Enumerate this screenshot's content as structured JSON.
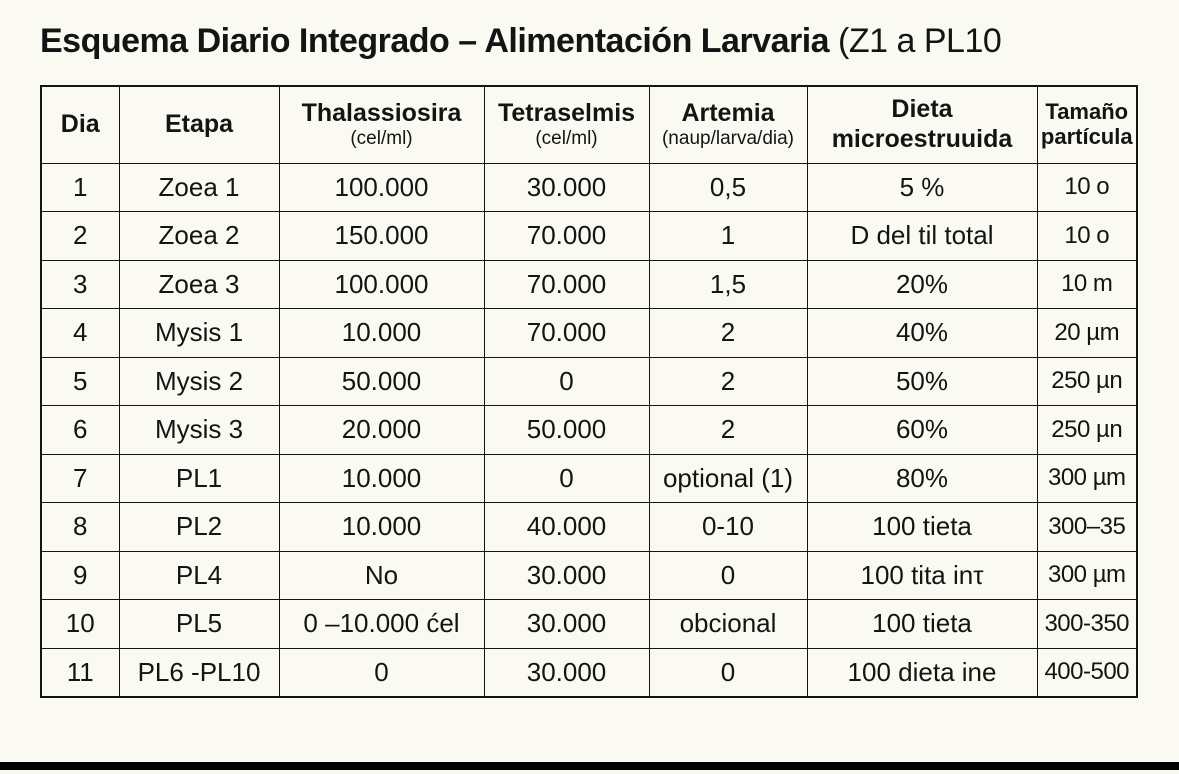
{
  "title": {
    "bold": "Esquema Diario Integrado – Alimentación Larvaria",
    "regular": " (Z1 a PL10"
  },
  "colors": {
    "background": "#FBFAF2",
    "border": "#141414",
    "text": "#141414",
    "bottom_bar": "#000000"
  },
  "table": {
    "headers": [
      {
        "line1": "Dia",
        "line2": "",
        "line2_type": "none"
      },
      {
        "line1": "Etapa",
        "line2": "",
        "line2_type": "none"
      },
      {
        "line1": "Thalassiosira",
        "line2": "(cel/ml)",
        "line2_type": "unit"
      },
      {
        "line1": "Tetraselmis",
        "line2": "(cel/ml)",
        "line2_type": "unit"
      },
      {
        "line1": "Artemia",
        "line2": "(naup/larva/dia)",
        "line2_type": "unit"
      },
      {
        "line1": "Dieta",
        "line2": "microestruuida",
        "line2_type": "bold"
      },
      {
        "line1": "Tamaño",
        "line2": "partícula",
        "line2_type": "bold"
      }
    ],
    "rows": [
      [
        "1",
        "Zoea 1",
        "100.000",
        "30.000",
        "0,5",
        "5 %",
        "10 o"
      ],
      [
        "2",
        "Zoea 2",
        "150.000",
        "70.000",
        "1",
        "D del til total",
        "10 o"
      ],
      [
        "3",
        "Zoea 3",
        "100.000",
        "70.000",
        "1,5",
        "20%",
        "10 m"
      ],
      [
        "4",
        "Mysis 1",
        "10.000",
        "70.000",
        "2",
        "40%",
        "20 µm"
      ],
      [
        "5",
        "Mysis 2",
        "50.000",
        "0",
        "2",
        "50%",
        "250 µn"
      ],
      [
        "6",
        "Mysis 3",
        "20.000",
        "50.000",
        "2",
        "60%",
        "250 µn"
      ],
      [
        "7",
        "PL1",
        "10.000",
        "0",
        "optional (1)",
        "80%",
        "300 µm"
      ],
      [
        "8",
        "PL2",
        "10.000",
        "40.000",
        "0-10",
        "100 tieta",
        "300–35"
      ],
      [
        "9",
        "PL4",
        "No",
        "30.000",
        "0",
        "100 tita inτ",
        "300 µm"
      ],
      [
        "10",
        "PL5",
        "0 –10.000 ćel",
        "30.000",
        "obcional",
        "100 tieta",
        "300-350"
      ],
      [
        "11",
        "PL6 -PL10",
        "0",
        "30.000",
        "0",
        "100 dieta ine",
        "400-500"
      ]
    ]
  },
  "chart_data": {
    "type": "table",
    "title": "Esquema Diario Integrado – Alimentación Larvaria (Z1 a PL10",
    "columns": [
      "Dia",
      "Etapa",
      "Thalassiosira (cel/ml)",
      "Tetraselmis (cel/ml)",
      "Artemia (naup/larva/dia)",
      "Dieta microestruuida",
      "Tamaño partícula"
    ],
    "rows": [
      [
        "1",
        "Zoea 1",
        "100.000",
        "30.000",
        "0,5",
        "5 %",
        "10 o"
      ],
      [
        "2",
        "Zoea 2",
        "150.000",
        "70.000",
        "1",
        "D del til total",
        "10 o"
      ],
      [
        "3",
        "Zoea 3",
        "100.000",
        "70.000",
        "1,5",
        "20%",
        "10 m"
      ],
      [
        "4",
        "Mysis 1",
        "10.000",
        "70.000",
        "2",
        "40%",
        "20 µm"
      ],
      [
        "5",
        "Mysis 2",
        "50.000",
        "0",
        "2",
        "50%",
        "250 µn"
      ],
      [
        "6",
        "Mysis 3",
        "20.000",
        "50.000",
        "2",
        "60%",
        "250 µn"
      ],
      [
        "7",
        "PL1",
        "10.000",
        "0",
        "optional (1)",
        "80%",
        "300 µm"
      ],
      [
        "8",
        "PL2",
        "10.000",
        "40.000",
        "0-10",
        "100 tieta",
        "300–35"
      ],
      [
        "9",
        "PL4",
        "No",
        "30.000",
        "0",
        "100 tita inτ",
        "300 µm"
      ],
      [
        "10",
        "PL5",
        "0 –10.000 ćel",
        "30.000",
        "obcional",
        "100 tieta",
        "300-350"
      ],
      [
        "11",
        "PL6 -PL10",
        "0",
        "30.000",
        "0",
        "100 dieta ine",
        "400-500"
      ]
    ]
  }
}
